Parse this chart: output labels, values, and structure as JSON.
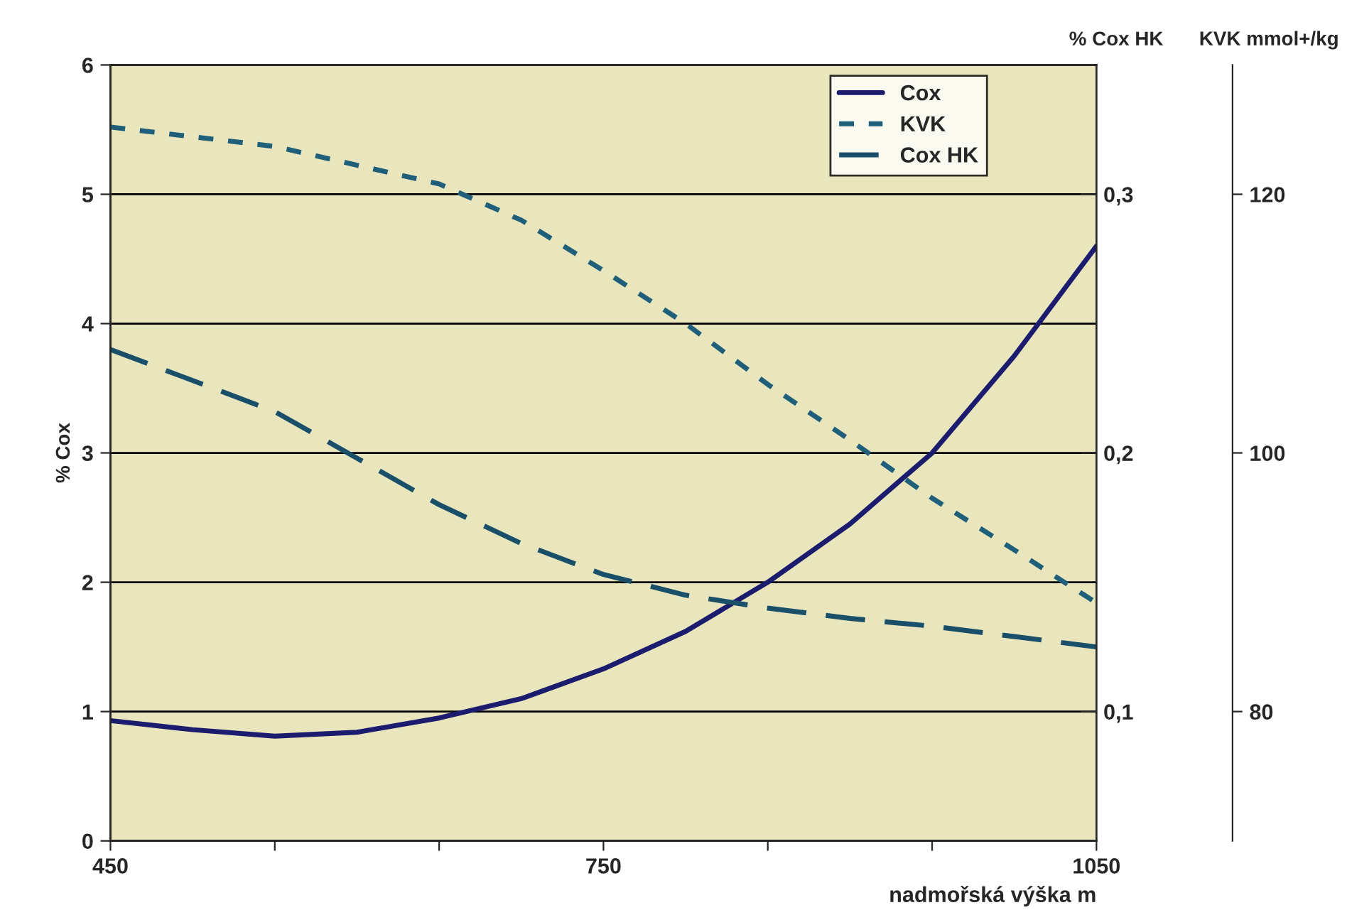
{
  "chart_data": {
    "type": "line",
    "xlabel": "nadmořská výška m",
    "ylabel": "% Cox",
    "y2label": "% Cox HK",
    "y3label": "KVK mmol+/kg",
    "xlim": [
      450,
      1050
    ],
    "xticks": [
      450,
      {
        "value": 550,
        "label": null
      },
      {
        "value": 650,
        "label": null
      },
      750,
      {
        "value": 850,
        "label": null
      },
      {
        "value": 950,
        "label": null
      },
      1050
    ],
    "ylim": [
      0,
      6
    ],
    "yticks": [
      0,
      1,
      2,
      3,
      4,
      5,
      6
    ],
    "y2lim": [
      0.05,
      0.35
    ],
    "y2ticks": [
      {
        "value": 0.1,
        "label": "0,1"
      },
      {
        "value": 0.2,
        "label": "0,2"
      },
      {
        "value": 0.3,
        "label": "0,3"
      }
    ],
    "y3lim": [
      70,
      130
    ],
    "y3ticks": [
      80,
      100,
      120
    ],
    "grid": "y",
    "legend": "top right",
    "series": [
      {
        "name": "Cox",
        "color": "#1c1c6e",
        "line_style": "solid",
        "x": [
          450,
          500,
          550,
          600,
          650,
          700,
          750,
          800,
          850,
          900,
          950,
          1000,
          1050
        ],
        "values": [
          0.93,
          0.86,
          0.81,
          0.84,
          0.95,
          1.1,
          1.33,
          1.62,
          2.0,
          2.45,
          3.0,
          3.75,
          4.6
        ]
      },
      {
        "name": "KVK",
        "color": "#1f5f7a",
        "line_style": "dotted",
        "axis": "y3",
        "x": [
          450,
          550,
          650,
          700,
          750,
          800,
          850,
          900,
          950,
          1000,
          1050
        ],
        "values": [
          125.2,
          123.7,
          120.8,
          118,
          114.1,
          110,
          105.3,
          101,
          96.5,
          92.5,
          88.4
        ]
      },
      {
        "name": "Cox HK",
        "color": "#1a4f6a",
        "line_style": "dashed",
        "axis": "y2",
        "x": [
          450,
          550,
          650,
          700,
          750,
          800,
          850,
          900,
          950,
          1000,
          1050
        ],
        "values": [
          0.24,
          0.216,
          0.18,
          0.165,
          0.153,
          0.145,
          0.14,
          0.136,
          0.133,
          0.129,
          0.125
        ]
      }
    ]
  }
}
